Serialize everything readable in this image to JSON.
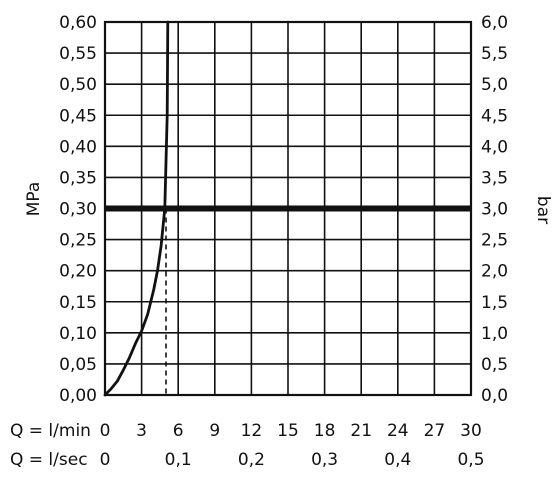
{
  "chart_data": {
    "type": "line",
    "title": "",
    "ylabel_left": "MPa",
    "ylabel_right": "bar",
    "x_primary": {
      "label": "Q = l/min",
      "ticks": [
        0,
        3,
        6,
        9,
        12,
        15,
        18,
        21,
        24,
        27,
        30
      ],
      "tick_labels": [
        "0",
        "3",
        "6",
        "9",
        "12",
        "15",
        "18",
        "21",
        "24",
        "27",
        "30"
      ],
      "range": [
        0,
        30
      ]
    },
    "x_secondary": {
      "label": "Q = l/sec",
      "ticks_lpm": [
        0,
        6,
        12,
        18,
        24,
        30
      ],
      "tick_labels": [
        "0",
        "0,1",
        "0,2",
        "0,3",
        "0,4",
        "0,5"
      ]
    },
    "y_left": {
      "range": [
        0,
        0.6
      ],
      "ticks": [
        0,
        0.05,
        0.1,
        0.15,
        0.2,
        0.25,
        0.3,
        0.35,
        0.4,
        0.45,
        0.5,
        0.55,
        0.6
      ],
      "tick_labels": [
        "0,00",
        "0,05",
        "0,10",
        "0,15",
        "0,20",
        "0,25",
        "0,30",
        "0,35",
        "0,40",
        "0,45",
        "0,50",
        "0,55",
        "0,60"
      ]
    },
    "y_right": {
      "tick_labels": [
        "0,0",
        "0,5",
        "1,0",
        "1,5",
        "2,0",
        "2,5",
        "3,0",
        "3,5",
        "4,0",
        "4,5",
        "5,0",
        "5,5",
        "6,0"
      ]
    },
    "grid": true,
    "series": [
      {
        "x": [
          0,
          0.5,
          1,
          1.5,
          2,
          2.5,
          3,
          3.5,
          4,
          4.3,
          4.6,
          4.9,
          5.1,
          5.15
        ],
        "y": [
          0,
          0.01,
          0.022,
          0.04,
          0.06,
          0.083,
          0.103,
          0.13,
          0.17,
          0.2,
          0.24,
          0.3,
          0.45,
          0.6
        ]
      }
    ],
    "reference_lines": [
      {
        "type": "horizontal",
        "y": 0.3,
        "style": "thick"
      },
      {
        "type": "vertical",
        "x": 5,
        "y_to": 0.3,
        "style": "dashed"
      }
    ],
    "colors": {
      "line": "#111111",
      "grid": "#111111",
      "background": "#ffffff"
    }
  }
}
